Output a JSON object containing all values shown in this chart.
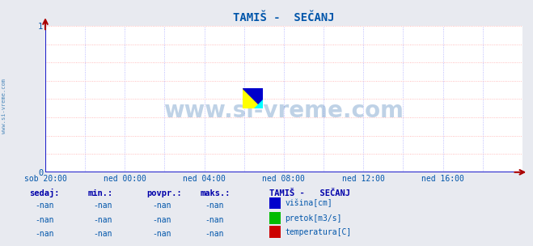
{
  "title": "TAMIŠ -  SEČANJ",
  "bg_color": "#e8eaf0",
  "plot_bg_color": "#ffffff",
  "grid_color_h": "#ffaaaa",
  "grid_color_v": "#aaaaff",
  "x_labels": [
    "sob 20:00",
    "ned 00:00",
    "ned 04:00",
    "ned 08:00",
    "ned 12:00",
    "ned 16:00"
  ],
  "x_ticks": [
    0,
    4,
    8,
    12,
    16,
    20
  ],
  "y_ticks": [
    0,
    1
  ],
  "ylim": [
    0,
    1
  ],
  "xlim": [
    0,
    24
  ],
  "watermark": "www.si-vreme.com",
  "watermark_color": "#1a5fa8",
  "watermark_alpha": 0.28,
  "side_label": "www.si-vreme.com",
  "side_label_color": "#1a6aaa",
  "axis_color": "#2222cc",
  "tick_color": "#0055aa",
  "title_color": "#0055aa",
  "legend_title": "TAMIŠ -   SEČANJ",
  "legend_items": [
    {
      "label": "višina[cm]",
      "color": "#0000cc"
    },
    {
      "label": "pretok[m3/s]",
      "color": "#00bb00"
    },
    {
      "label": "temperatura[C]",
      "color": "#cc0000"
    }
  ],
  "table_headers": [
    "sedaj:",
    "min.:",
    "povpr.:",
    "maks.:"
  ],
  "table_rows": [
    [
      "-nan",
      "-nan",
      "-nan",
      "-nan"
    ],
    [
      "-nan",
      "-nan",
      "-nan",
      "-nan"
    ],
    [
      "-nan",
      "-nan",
      "-nan",
      "-nan"
    ]
  ],
  "arrow_color": "#aa0000",
  "logo_yellow": "#ffff00",
  "logo_cyan": "#00ffff",
  "logo_blue": "#0000cc"
}
